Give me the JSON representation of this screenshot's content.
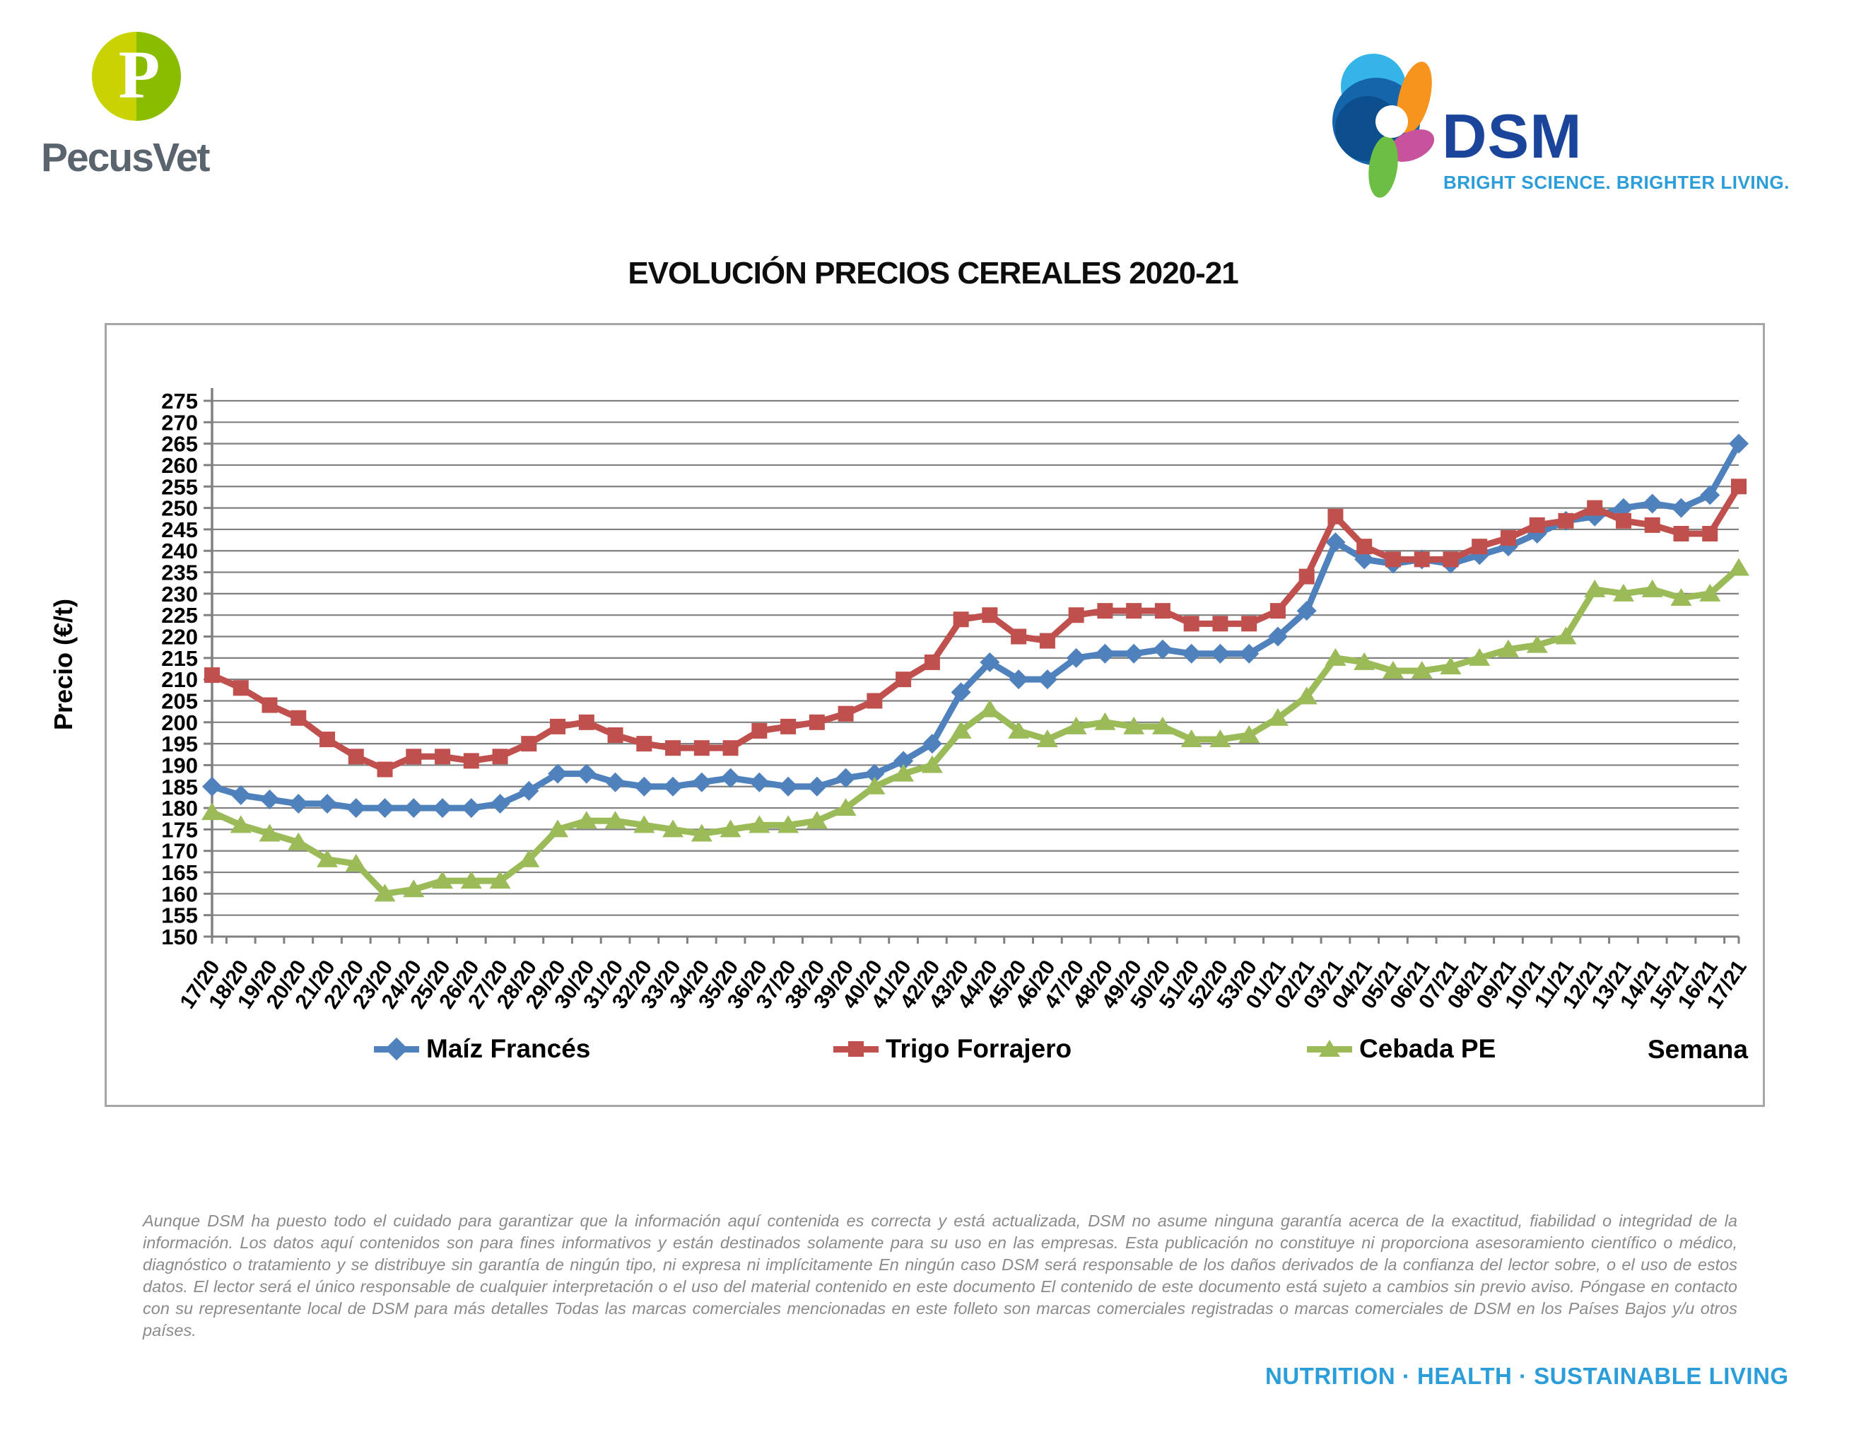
{
  "header": {
    "pecusvet_name": "PecusVet",
    "pecusvet_glyph": "P",
    "dsm_name": "DSM",
    "dsm_tagline": "BRIGHT SCIENCE. BRIGHTER LIVING."
  },
  "title": "EVOLUCIÓN PRECIOS CEREALES 2020-21",
  "chart_data": {
    "type": "line",
    "title": "EVOLUCIÓN PRECIOS CEREALES 2020-21",
    "xlabel": "Semana",
    "ylabel": "Precio (€/t)",
    "ylim": [
      150,
      275
    ],
    "ytick_step": 5,
    "grid": true,
    "legend_position": "bottom",
    "gridline_color": "#808080",
    "border_color": "#a6a6a6",
    "categories": [
      "17/20",
      "18/20",
      "19/20",
      "20/20",
      "21/20",
      "22/20",
      "23/20",
      "24/20",
      "25/20",
      "26/20",
      "27/20",
      "28/20",
      "29/20",
      "30/20",
      "31/20",
      "32/20",
      "33/20",
      "34/20",
      "35/20",
      "36/20",
      "37/20",
      "38/20",
      "39/20",
      "40/20",
      "41/20",
      "42/20",
      "43/20",
      "44/20",
      "45/20",
      "46/20",
      "47/20",
      "48/20",
      "49/20",
      "50/20",
      "51/20",
      "52/20",
      "53/20",
      "01/21",
      "02/21",
      "03/21",
      "04/21",
      "05/21",
      "06/21",
      "07/21",
      "08/21",
      "09/21",
      "10/21",
      "11/21",
      "12/21",
      "13/21",
      "14/21",
      "15/21",
      "16/21",
      "17/21"
    ],
    "series": [
      {
        "name": "Maíz Francés",
        "color": "#4F81BD",
        "marker": "diamond",
        "values": [
          185,
          183,
          182,
          181,
          181,
          180,
          180,
          180,
          180,
          180,
          181,
          184,
          188,
          188,
          186,
          185,
          185,
          186,
          187,
          186,
          185,
          185,
          187,
          188,
          191,
          195,
          207,
          214,
          210,
          210,
          215,
          216,
          216,
          217,
          216,
          216,
          216,
          220,
          226,
          242,
          238,
          237,
          238,
          237,
          239,
          241,
          244,
          247,
          248,
          250,
          251,
          250,
          253,
          265
        ]
      },
      {
        "name": "Trigo Forrajero",
        "color": "#C0504D",
        "marker": "square",
        "values": [
          211,
          208,
          204,
          201,
          196,
          192,
          189,
          192,
          192,
          191,
          192,
          195,
          199,
          200,
          197,
          195,
          194,
          194,
          194,
          198,
          199,
          200,
          202,
          205,
          210,
          214,
          224,
          225,
          220,
          219,
          225,
          226,
          226,
          226,
          223,
          223,
          223,
          226,
          234,
          248,
          241,
          238,
          238,
          238,
          241,
          243,
          246,
          247,
          250,
          247,
          246,
          244,
          244,
          255
        ]
      },
      {
        "name": "Cebada PE",
        "color": "#9BBB59",
        "marker": "triangle",
        "values": [
          179,
          176,
          174,
          172,
          168,
          167,
          160,
          161,
          163,
          163,
          163,
          168,
          175,
          177,
          177,
          176,
          175,
          174,
          175,
          176,
          176,
          177,
          180,
          185,
          188,
          190,
          198,
          203,
          198,
          196,
          199,
          200,
          199,
          199,
          196,
          196,
          197,
          201,
          206,
          215,
          214,
          212,
          212,
          213,
          215,
          217,
          218,
          220,
          231,
          230,
          231,
          229,
          230,
          236
        ]
      }
    ]
  },
  "footer": {
    "disclaimer": "Aunque DSM ha puesto todo el cuidado para garantizar que la información aquí contenida es correcta y está actualizada, DSM no asume ninguna garantía acerca de la exactitud, fiabilidad o integridad de la información. Los datos aquí contenidos son para fines informativos y están destinados solamente para su uso en las empresas. Esta publicación no constituye ni proporciona asesoramiento científico o médico, diagnóstico o tratamiento y se distribuye sin garantía de ningún tipo, ni expresa ni implícitamente En ningún caso DSM será responsable de los daños derivados de la confianza del lector sobre, o el uso de estos datos. El lector será el único responsable de cualquier interpretación o el uso del material contenido en este documento El contenido de este documento está sujeto a cambios sin previo aviso. Póngase en contacto con su representante local de DSM para más detalles Todas las marcas comerciales mencionadas en este folleto son marcas comerciales registradas o marcas comerciales de DSM en los Países Bajos y/u otros países.",
    "tagline": "NUTRITION · HEALTH · SUSTAINABLE LIVING"
  }
}
